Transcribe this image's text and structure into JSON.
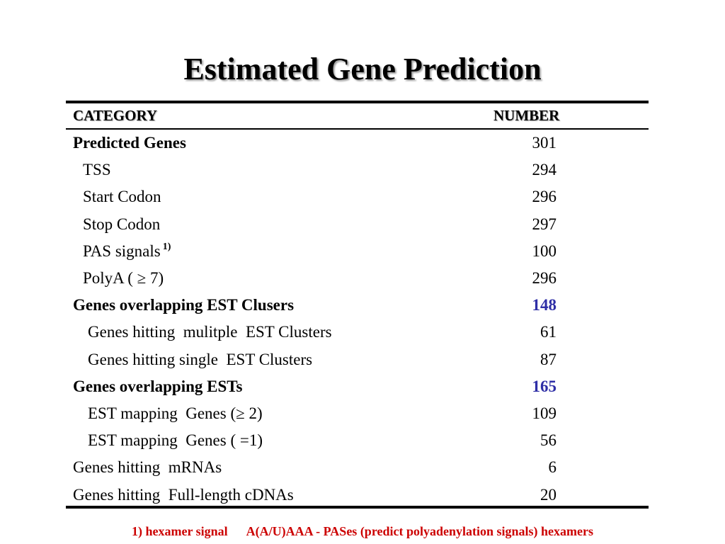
{
  "title": "Estimated Gene Prediction",
  "table": {
    "headers": {
      "category": "CATEGORY",
      "number": "NUMBER"
    },
    "rows": [
      {
        "label": "Predicted Genes",
        "value": "301",
        "style": "bold",
        "indent": 0
      },
      {
        "label": "TSS",
        "value": "294",
        "style": "normal",
        "indent": 1
      },
      {
        "label": "Start Codon",
        "value": "296",
        "style": "normal",
        "indent": 1
      },
      {
        "label": "Stop Codon",
        "value": "297",
        "style": "normal",
        "indent": 1
      },
      {
        "label": "PAS signals",
        "sup": "1)",
        "value": "100",
        "style": "normal",
        "indent": 1
      },
      {
        "label": "PolyA ( ≥ 7)",
        "value": "296",
        "style": "normal",
        "indent": 1
      },
      {
        "label": "Genes overlapping EST Clusers",
        "value": "148",
        "style": "bold",
        "value_style": "blue",
        "indent": 0
      },
      {
        "label": "Genes hitting  mulitple  EST Clusters",
        "value": "61",
        "style": "normal",
        "indent": 2
      },
      {
        "label": "Genes hitting single  EST Clusters",
        "value": "87",
        "style": "normal",
        "indent": 2
      },
      {
        "label": "Genes overlapping ESTs",
        "value": "165",
        "style": "bold",
        "value_style": "blue",
        "indent": 0
      },
      {
        "label": "EST mapping  Genes (≥ 2)",
        "value": "109",
        "style": "normal",
        "indent": 2
      },
      {
        "label": "EST mapping  Genes ( =1)",
        "value": "56",
        "style": "normal",
        "indent": 2
      },
      {
        "label": "Genes hitting  mRNAs",
        "value": "6",
        "style": "normal",
        "indent": 0
      },
      {
        "label": "Genes hitting  Full-length cDNAs",
        "value": "20",
        "style": "normal",
        "indent": 0
      }
    ]
  },
  "footnote": "1) hexamer signal      A(A/U)AAA - PASes (predict polyadenylation signals) hexamers",
  "colors": {
    "highlight_value": "#2e2ea6",
    "footnote": "#cc0000",
    "text": "#000000"
  }
}
